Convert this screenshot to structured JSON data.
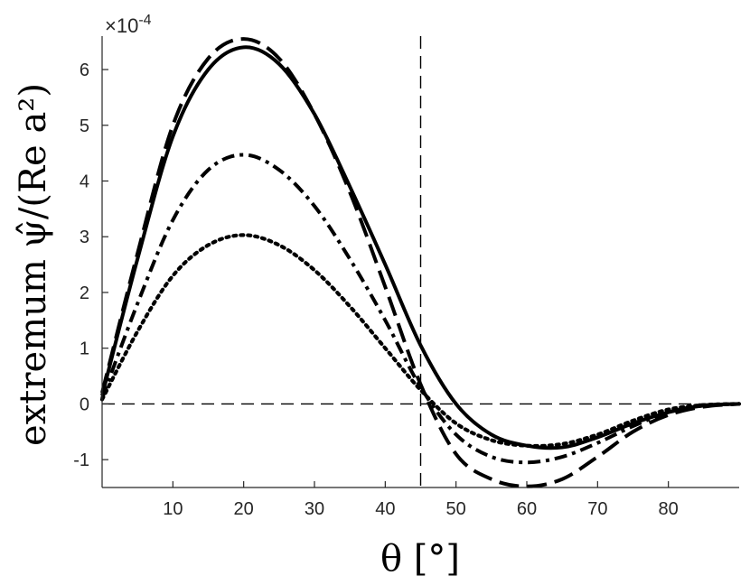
{
  "chart_data": {
    "type": "line",
    "title": "",
    "xlabel": "θ [°]",
    "ylabel": "extremum ψ̂/(Re a²)",
    "xlim": [
      0,
      90
    ],
    "ylim": [
      -1.5,
      6.6
    ],
    "y_scale_exponent": "×10-4",
    "x_ticks": [
      "10",
      "20",
      "30",
      "40",
      "50",
      "60",
      "70",
      "80"
    ],
    "x_tick_values": [
      10,
      20,
      30,
      40,
      50,
      60,
      70,
      80
    ],
    "y_ticks": [
      "-1",
      "0",
      "1",
      "2",
      "3",
      "4",
      "5",
      "6"
    ],
    "y_tick_values": [
      -1,
      0,
      1,
      2,
      3,
      4,
      5,
      6
    ],
    "reference_lines": {
      "x": 45,
      "y": 0
    },
    "series": [
      {
        "style": "solid",
        "x": [
          0,
          5,
          10,
          15,
          20,
          25,
          30,
          35,
          40,
          45,
          50,
          55,
          60,
          65,
          70,
          75,
          80,
          85,
          90
        ],
        "y": [
          0.15,
          2.6,
          4.8,
          6.0,
          6.4,
          6.1,
          5.2,
          3.9,
          2.5,
          1.05,
          0.0,
          -0.55,
          -0.75,
          -0.78,
          -0.6,
          -0.35,
          -0.15,
          -0.03,
          0.0
        ]
      },
      {
        "style": "dashed",
        "x": [
          0,
          5,
          10,
          15,
          20,
          25,
          30,
          35,
          40,
          45,
          50,
          55,
          60,
          65,
          70,
          75,
          80,
          85,
          90
        ],
        "y": [
          0.2,
          2.7,
          5.0,
          6.2,
          6.55,
          6.2,
          5.2,
          3.8,
          2.1,
          0.35,
          -0.9,
          -1.35,
          -1.48,
          -1.35,
          -0.95,
          -0.5,
          -0.2,
          -0.05,
          0.0
        ]
      },
      {
        "style": "dash-dot",
        "x": [
          0,
          5,
          10,
          15,
          20,
          25,
          30,
          35,
          40,
          45,
          50,
          55,
          60,
          65,
          70,
          75,
          80,
          85,
          90
        ],
        "y": [
          0.1,
          1.8,
          3.3,
          4.2,
          4.47,
          4.2,
          3.55,
          2.6,
          1.5,
          0.3,
          -0.55,
          -0.95,
          -1.05,
          -0.95,
          -0.7,
          -0.4,
          -0.15,
          -0.03,
          0.0
        ]
      },
      {
        "style": "dotted",
        "x": [
          0,
          5,
          10,
          15,
          20,
          25,
          30,
          35,
          40,
          45,
          50,
          55,
          60,
          65,
          70,
          75,
          80,
          85,
          90
        ],
        "y": [
          0.08,
          1.3,
          2.3,
          2.85,
          3.03,
          2.85,
          2.4,
          1.75,
          1.0,
          0.25,
          -0.35,
          -0.65,
          -0.75,
          -0.72,
          -0.55,
          -0.3,
          -0.1,
          -0.02,
          0.0
        ]
      }
    ]
  }
}
